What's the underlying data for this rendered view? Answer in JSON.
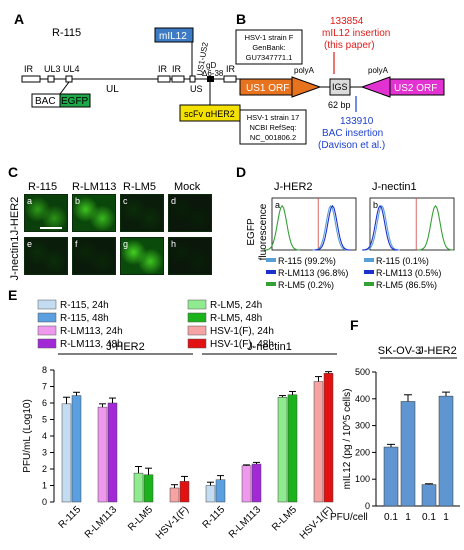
{
  "panels": {
    "a": "A",
    "b": "B",
    "c": "C",
    "d": "D",
    "e": "E",
    "f": "F"
  },
  "panel_a": {
    "virus": "R-115",
    "segments": [
      "IR",
      "UL3",
      "UL4",
      "UL",
      "IR",
      "IR",
      "US",
      "IR"
    ],
    "labels": {
      "bac": "BAC",
      "egfp": "EGFP",
      "mil12": "mIL12",
      "us1us2": "US1-US2",
      "gd": "gD",
      "gd_del": "Δ6-38",
      "scfv": "scFv αHER2"
    },
    "colors": {
      "egfp": "#1fa84a",
      "mil12": "#3d7cc4",
      "scfv": "#f5e100"
    }
  },
  "panel_b": {
    "strain_f": [
      "HSV-1 strain F",
      "GenBank:",
      "GU7347771.1"
    ],
    "strain_17": [
      "HSV-1 strain 17",
      "NCBI RefSeq:",
      "NC_001806.2"
    ],
    "mil12_pos": "133854",
    "mil12_text": [
      "mIL12 insertion",
      "(this paper)"
    ],
    "bac_pos": "133910",
    "bac_text": [
      "BAC insertion",
      "(Davison et al.)"
    ],
    "us1": "US1 ORF",
    "us2": "US2 ORF",
    "igs": "IGS",
    "polya1": "polyA",
    "polya2": "polyA",
    "bp": "62 bp",
    "colors": {
      "us1": "#e8731f",
      "us2": "#e233d2",
      "red": "#e01b1b",
      "blue": "#1c3fcf"
    }
  },
  "panel_c": {
    "columns": [
      "R-115",
      "R-LM113",
      "R-LM5",
      "Mock"
    ],
    "rows": [
      "J-HER2",
      "J-nectin1"
    ],
    "letters": [
      "a",
      "b",
      "c",
      "d",
      "e",
      "f",
      "g",
      "h"
    ],
    "brightness": [
      0.7,
      0.85,
      0.15,
      0.05,
      0.15,
      0.1,
      0.9,
      0.05
    ]
  },
  "panel_d": {
    "ylabel": [
      "EGFP",
      "fluorescence"
    ],
    "plots": [
      {
        "title": "J-HER2",
        "letter": "a",
        "legend": [
          {
            "name": "R-115 (99.2%)",
            "color": "#5a9fd4"
          },
          {
            "name": "R-LM113 (96.8%)",
            "color": "#1c2fcf"
          },
          {
            "name": "R-LM5 (0.2%)",
            "color": "#35a035"
          }
        ]
      },
      {
        "title": "J-nectin1",
        "letter": "b",
        "legend": [
          {
            "name": "R-115 (0.1%)",
            "color": "#5a9fd4"
          },
          {
            "name": "R-LM113 (0.5%)",
            "color": "#1c2fcf"
          },
          {
            "name": "R-LM5 (86.5%)",
            "color": "#35a035"
          }
        ]
      }
    ]
  },
  "chart_data": [
    {
      "type": "bar",
      "ylabel": "PFU/mL (Log10)",
      "ylim": [
        0,
        8
      ],
      "yticks": [
        "0",
        "1",
        "2",
        "3",
        "4",
        "5",
        "6",
        "7",
        "8"
      ],
      "groups": [
        "J-HER2",
        "J-nectin1"
      ],
      "categories": [
        "R-115",
        "R-LM113",
        "R-LM5",
        "HSV-1(F)"
      ],
      "legend": [
        {
          "name": "R-115, 24h",
          "color": "#c4dcf2"
        },
        {
          "name": "R-115, 48h",
          "color": "#5a9fdf"
        },
        {
          "name": "R-LM113, 24h",
          "color": "#ee99ee"
        },
        {
          "name": "R-LM113, 48h",
          "color": "#a12ad6"
        },
        {
          "name": "R-LM5, 24h",
          "color": "#90eb90"
        },
        {
          "name": "R-LM5, 48h",
          "color": "#1bb31b"
        },
        {
          "name": "HSV-1(F), 24h",
          "color": "#f5a3a3"
        },
        {
          "name": "HSV-1(F), 48h",
          "color": "#e31212"
        }
      ],
      "values": {
        "J-HER2": [
          [
            5.95,
            6.45
          ],
          [
            5.75,
            6.0
          ],
          [
            1.75,
            1.65
          ],
          [
            0.85,
            1.25
          ]
        ],
        "J-nectin1": [
          [
            1.0,
            1.35
          ],
          [
            2.2,
            2.3
          ],
          [
            6.35,
            6.5
          ],
          [
            7.3,
            7.8
          ]
        ]
      },
      "errors": {
        "J-HER2": [
          [
            0.4,
            0.2
          ],
          [
            0.2,
            0.3
          ],
          [
            0.4,
            0.4
          ],
          [
            0.2,
            0.3
          ]
        ],
        "J-nectin1": [
          [
            0.2,
            0.25
          ],
          [
            0.05,
            0.1
          ],
          [
            0.1,
            0.2
          ],
          [
            0.3,
            0.1
          ]
        ]
      }
    },
    {
      "type": "bar",
      "ylabel": "mIL12 (pg / 10^5 cells)",
      "ylim": [
        0,
        500
      ],
      "yticks": [
        "0",
        "100",
        "200",
        "300",
        "400",
        "500"
      ],
      "groups": [
        "SK-OV-3",
        "J-HER2"
      ],
      "xlabel": "PFU/cell",
      "categories": [
        "0.1",
        "1"
      ],
      "values": {
        "SK-OV-3": [
          220,
          390
        ],
        "J-HER2": [
          80,
          410
        ]
      },
      "errors": {
        "SK-OV-3": [
          10,
          25
        ],
        "J-HER2": [
          3,
          15
        ]
      },
      "color": "#5f95d0"
    }
  ]
}
